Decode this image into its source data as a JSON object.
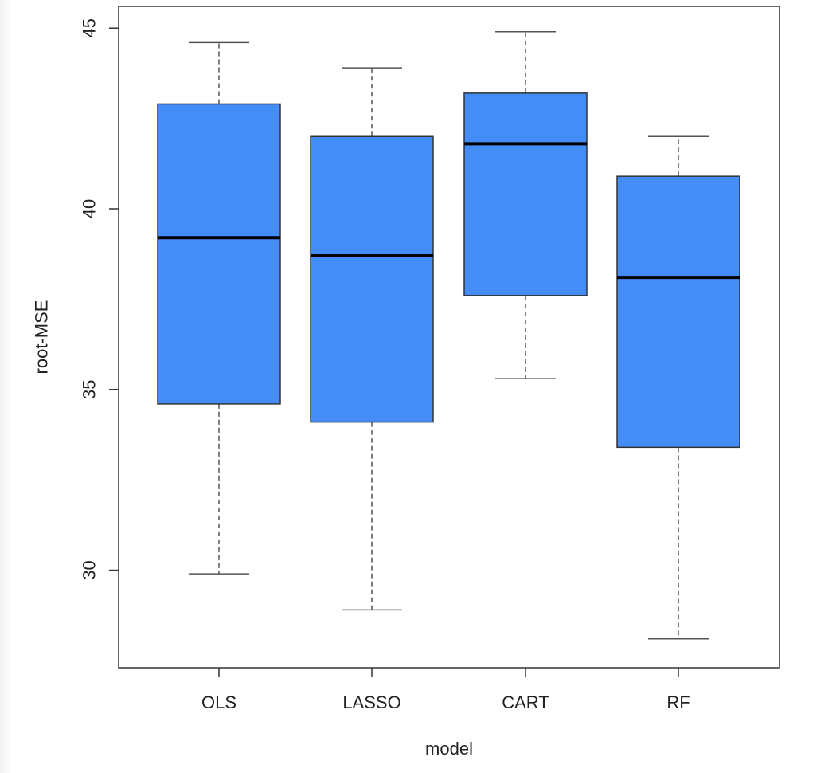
{
  "chart_data": {
    "type": "boxplot",
    "title": "",
    "xlabel": "model",
    "ylabel": "root-MSE",
    "categories": [
      "OLS",
      "LASSO",
      "CART",
      "RF"
    ],
    "boxes": [
      {
        "category": "OLS",
        "whisker_low": 29.9,
        "q1": 34.6,
        "median": 39.2,
        "q3": 42.9,
        "whisker_high": 44.6
      },
      {
        "category": "LASSO",
        "whisker_low": 28.9,
        "q1": 34.1,
        "median": 38.7,
        "q3": 42.0,
        "whisker_high": 43.9
      },
      {
        "category": "CART",
        "whisker_low": 35.3,
        "q1": 37.6,
        "median": 41.8,
        "q3": 43.2,
        "whisker_high": 44.9
      },
      {
        "category": "RF",
        "whisker_low": 28.1,
        "q1": 33.4,
        "median": 38.1,
        "q3": 40.9,
        "whisker_high": 42.0
      }
    ],
    "yticks": [
      30,
      35,
      40,
      45
    ],
    "ylim": [
      27.3,
      45.6
    ],
    "grid": false,
    "box_color": "#448cf7",
    "border_color": "#333333",
    "median_color": "#000000"
  }
}
